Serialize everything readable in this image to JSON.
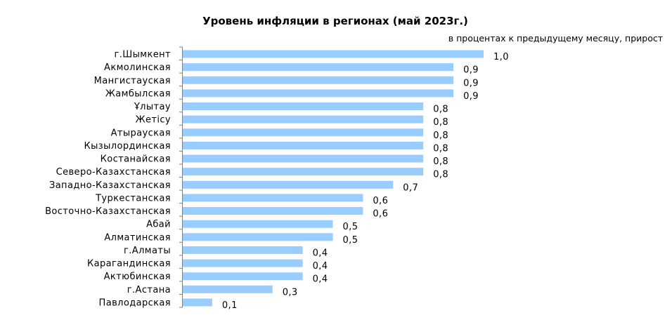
{
  "chart_data": {
    "type": "bar",
    "orientation": "horizontal",
    "title": "Уровень инфляции в регионах (май 2023г.)",
    "subtitle": "в процентах к предыдущему месяцу, прирост",
    "xlabel": "",
    "ylabel": "",
    "xlim": [
      0,
      1.0
    ],
    "grid": false,
    "legend": "none",
    "bar_color": "#99CCFF",
    "categories": [
      "г.Шымкент",
      "Акмолинская",
      "Мангистауская",
      "Жамбылская",
      "Ұлытау",
      "Жетісу",
      "Атырауская",
      "Кызылординская",
      "Костанайская",
      "Северо-Казахстанская",
      "Западно-Казахстанская",
      "Туркестанская",
      "Восточно-Казахстанская",
      "Абай",
      "Алматинская",
      "г.Алматы",
      "Карагандинская",
      "Актюбинская",
      "г.Астана",
      "Павлодарская"
    ],
    "values": [
      1.0,
      0.9,
      0.9,
      0.9,
      0.8,
      0.8,
      0.8,
      0.8,
      0.8,
      0.8,
      0.7,
      0.6,
      0.6,
      0.5,
      0.5,
      0.4,
      0.4,
      0.4,
      0.3,
      0.1
    ],
    "value_labels": [
      "1,0",
      "0,9",
      "0,9",
      "0,9",
      "0,8",
      "0,8",
      "0,8",
      "0,8",
      "0,8",
      "0,8",
      "0,7",
      "0,6",
      "0,6",
      "0,5",
      "0,5",
      "0,4",
      "0,4",
      "0,4",
      "0,3",
      "0,1"
    ]
  }
}
